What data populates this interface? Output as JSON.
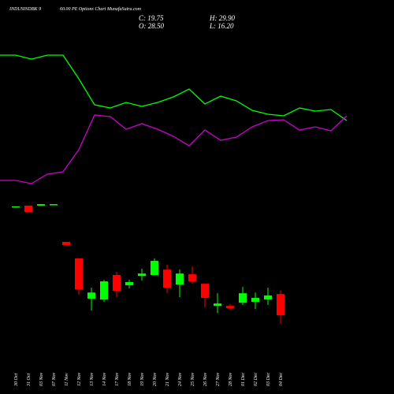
{
  "header": {
    "title_left": "INDUSINDBK 9",
    "title_right": "60.00  PE Options  Chart MunafaSutra.com",
    "info": [
      "C: 19.75",
      "H: 29.90",
      "O: 28.50",
      "L: 16.20"
    ]
  },
  "chart_data": [
    {
      "type": "line",
      "ylim": [
        0,
        240
      ],
      "series": [
        {
          "color": "#00ff00",
          "values": [
            180,
            180,
            175,
            180,
            180,
            150,
            117,
            113,
            120,
            115,
            120,
            127,
            137,
            118,
            128,
            122,
            110,
            105,
            103,
            113,
            109,
            111,
            97
          ]
        },
        {
          "color": "#cc00cc",
          "values": [
            21,
            21,
            17,
            29,
            32,
            60,
            104,
            102,
            86,
            93,
            86,
            77,
            65,
            85,
            72,
            76,
            89,
            97,
            98,
            85,
            89,
            84,
            103
          ]
        }
      ]
    },
    {
      "type": "candlestick",
      "ylim": [
        13,
        68
      ],
      "up_color": "#00ff00",
      "down_color": "#ff0000",
      "categories": [
        "30 Oct",
        "31 Oct",
        "03 Nov",
        "07 Nov",
        "11 Nov",
        "12 Nov",
        "13 Nov",
        "14 Nov",
        "17 Nov",
        "18 Nov",
        "19 Nov",
        "20 Nov",
        "21 Nov",
        "24 Nov",
        "25 Nov",
        "26 Nov",
        "27 Nov",
        "28 Nov",
        "01 Dec",
        "02 Dec",
        "03 Dec",
        "04 Dec"
      ],
      "open": [
        64.5,
        64.8,
        64.8,
        65.4,
        49.9,
        43.1,
        26.6,
        26.2,
        36.3,
        32.1,
        35.9,
        36.3,
        38.5,
        32.4,
        36.6,
        32.7,
        23.6,
        23.6,
        24.9,
        25.3,
        26.2,
        28.5
      ],
      "high": [
        64.5,
        64.8,
        65.4,
        65.4,
        49.9,
        43.1,
        31.1,
        34.3,
        37.6,
        34.3,
        38.9,
        43.1,
        40.5,
        38.5,
        39.8,
        32.7,
        28.8,
        24.3,
        31.4,
        29.1,
        31.1,
        29.9
      ],
      "low": [
        64.5,
        62.2,
        64.8,
        65.4,
        48.6,
        28.2,
        21.7,
        25.3,
        27.2,
        30.8,
        34.0,
        36.3,
        28.8,
        27.2,
        32.7,
        23.0,
        20.7,
        22.0,
        24.0,
        22.3,
        24.0,
        16.2
      ],
      "close": [
        64.5,
        62.2,
        65.4,
        65.4,
        48.6,
        30.4,
        29.1,
        33.7,
        29.8,
        33.4,
        36.9,
        42.1,
        31.1,
        36.9,
        33.7,
        26.9,
        24.6,
        22.7,
        28.8,
        26.9,
        27.9,
        19.75
      ]
    }
  ]
}
